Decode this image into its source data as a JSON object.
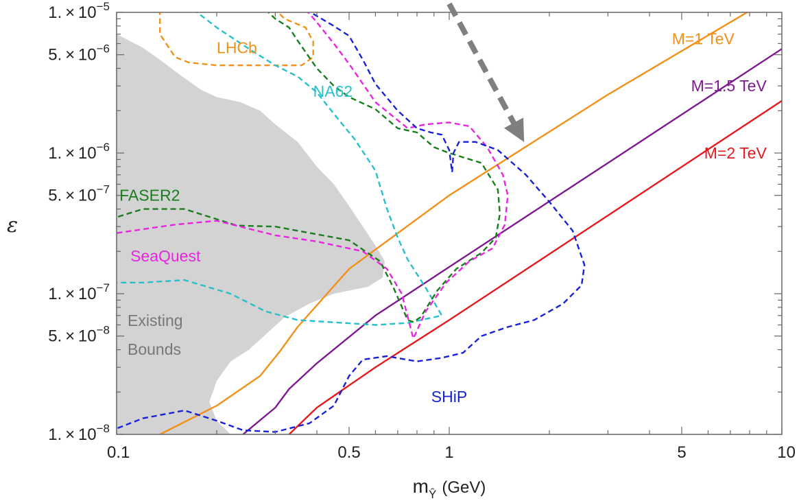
{
  "chart_data": {
    "type": "line",
    "xscale": "log",
    "yscale": "log",
    "xlim": [
      0.1,
      10
    ],
    "ylim": [
      1e-08,
      1e-05
    ],
    "xlabel": "m",
    "xlabel_sub": "Ŷ",
    "xlabel_unit": "(GeV)",
    "ylabel": "ε",
    "grid": false,
    "x_ticks": [
      {
        "value": 0.1,
        "label": "0.1"
      },
      {
        "value": 0.5,
        "label": "0.5"
      },
      {
        "value": 1,
        "label": "1"
      },
      {
        "value": 5,
        "label": "5"
      },
      {
        "value": 10,
        "label": "10"
      }
    ],
    "y_ticks": [
      {
        "value": 1e-08,
        "mant": "1. × 10",
        "exp": "−8"
      },
      {
        "value": 5e-08,
        "mant": "5. × 10",
        "exp": "−8"
      },
      {
        "value": 1e-07,
        "mant": "1. × 10",
        "exp": "−7"
      },
      {
        "value": 5e-07,
        "mant": "5. × 10",
        "exp": "−7"
      },
      {
        "value": 1e-06,
        "mant": "1. × 10",
        "exp": "−6"
      },
      {
        "value": 5e-06,
        "mant": "5. × 10",
        "exp": "−6"
      },
      {
        "value": 1e-05,
        "mant": "1. × 10",
        "exp": "−5"
      }
    ],
    "region": {
      "name": "Existing Bounds",
      "lines": [
        "Existing",
        "Bounds"
      ],
      "color": "#d3d3d3",
      "points": [
        [
          0.1,
          7e-06
        ],
        [
          0.12,
          5.6e-06
        ],
        [
          0.135,
          4.6e-06
        ],
        [
          0.155,
          3.6e-06
        ],
        [
          0.18,
          2.8e-06
        ],
        [
          0.2,
          2.5e-06
        ],
        [
          0.235,
          2.3e-06
        ],
        [
          0.27,
          2e-06
        ],
        [
          0.3,
          1.6e-06
        ],
        [
          0.35,
          1.2e-06
        ],
        [
          0.4,
          8e-07
        ],
        [
          0.45,
          6e-07
        ],
        [
          0.5,
          4.2e-07
        ],
        [
          0.55,
          3e-07
        ],
        [
          0.6,
          2.2e-07
        ],
        [
          0.64,
          1.7e-07
        ],
        [
          0.63,
          1.3e-07
        ],
        [
          0.57,
          1.12e-07
        ],
        [
          0.45,
          1e-07
        ],
        [
          0.38,
          8.5e-08
        ],
        [
          0.32,
          6.8e-08
        ],
        [
          0.28,
          5.1e-08
        ],
        [
          0.25,
          4e-08
        ],
        [
          0.22,
          3.3e-08
        ],
        [
          0.2,
          2.4e-08
        ],
        [
          0.19,
          1.7e-08
        ],
        [
          0.2,
          1.25e-08
        ],
        [
          0.22,
          1e-08
        ],
        [
          0.1,
          1e-08
        ]
      ]
    },
    "series": [
      {
        "name": "M=1 TeV",
        "color": "#f39019",
        "style": "solid",
        "points": [
          [
            0.135,
            1e-08
          ],
          [
            0.2,
            1.6e-08
          ],
          [
            0.27,
            2.6e-08
          ],
          [
            0.31,
            3.9e-08
          ],
          [
            0.35,
            5.8e-08
          ],
          [
            0.5,
            1.5e-07
          ],
          [
            1,
            5e-07
          ],
          [
            3,
            2.6e-06
          ],
          [
            10,
            1.4e-05
          ]
        ]
      },
      {
        "name": "M=1.5 TeV",
        "color": "#7d1a8f",
        "style": "solid",
        "points": [
          [
            0.24,
            1e-08
          ],
          [
            0.3,
            1.55e-08
          ],
          [
            0.33,
            2.1e-08
          ],
          [
            0.4,
            3.2e-08
          ],
          [
            0.6,
            7e-08
          ],
          [
            1,
            1.55e-07
          ],
          [
            3,
            8.5e-07
          ],
          [
            10,
            5.5e-06
          ]
        ]
      },
      {
        "name": "M=2 TeV",
        "color": "#e8191e",
        "style": "solid",
        "points": [
          [
            0.33,
            1e-08
          ],
          [
            0.4,
            1.55e-08
          ],
          [
            0.6,
            3e-08
          ],
          [
            1,
            6.5e-08
          ],
          [
            3,
            3.6e-07
          ],
          [
            10,
            2.35e-06
          ]
        ]
      },
      {
        "name": "LHCb",
        "color": "#f39019",
        "style": "dashed",
        "points": [
          [
            0.135,
            1.05e-05
          ],
          [
            0.135,
            7e-06
          ],
          [
            0.15,
            4.8e-06
          ],
          [
            0.165,
            4.4e-06
          ],
          [
            0.2,
            4.2e-06
          ],
          [
            0.3,
            4.2e-06
          ],
          [
            0.36,
            4.2e-06
          ],
          [
            0.39,
            4.8e-06
          ],
          [
            0.39,
            6.2e-06
          ],
          [
            0.37,
            7.8e-06
          ],
          [
            0.32,
            9e-06
          ],
          [
            0.3,
            1.05e-05
          ]
        ]
      },
      {
        "name": "NA62",
        "color": "#27c0c9",
        "style": "dashed",
        "points": [
          [
            0.17,
            1.05e-05
          ],
          [
            0.2,
            7.8e-06
          ],
          [
            0.25,
            5.5e-06
          ],
          [
            0.3,
            4.2e-06
          ],
          [
            0.35,
            3.5e-06
          ],
          [
            0.4,
            2.7e-06
          ],
          [
            0.45,
            1.9e-06
          ],
          [
            0.52,
            1.25e-06
          ],
          [
            0.6,
            7.5e-07
          ],
          [
            0.65,
            4e-07
          ],
          [
            0.7,
            2.5e-07
          ],
          [
            0.75,
            1.75e-07
          ],
          [
            0.85,
            1.1e-07
          ],
          [
            0.95,
            7e-08
          ],
          [
            0.75,
            6.2e-08
          ],
          [
            0.6,
            6e-08
          ],
          [
            0.35,
            6.5e-08
          ],
          [
            0.28,
            7.5e-08
          ],
          [
            0.22,
            1e-07
          ],
          [
            0.16,
            1.25e-07
          ],
          [
            0.12,
            1.2e-07
          ],
          [
            0.1,
            1.2e-07
          ]
        ]
      },
      {
        "name": "FASER2",
        "color": "#1a7d1d",
        "style": "dashed",
        "points": [
          [
            0.28,
            1.05e-05
          ],
          [
            0.3,
            9e-06
          ],
          [
            0.33,
            7.8e-06
          ],
          [
            0.35,
            6.3e-06
          ],
          [
            0.4,
            4e-06
          ],
          [
            0.45,
            3e-06
          ],
          [
            0.5,
            2.5e-06
          ],
          [
            0.6,
            2.05e-06
          ],
          [
            0.7,
            1.5e-06
          ],
          [
            0.8,
            1.4e-06
          ],
          [
            0.9,
            1.1e-06
          ],
          [
            1.0,
            1e-06
          ],
          [
            1.25,
            8.5e-07
          ],
          [
            1.4,
            5.5e-07
          ],
          [
            1.42,
            3.7e-07
          ],
          [
            1.38,
            2.5e-07
          ],
          [
            1.25,
            1.95e-07
          ],
          [
            1.05,
            1.5e-07
          ],
          [
            0.92,
            1.05e-07
          ],
          [
            0.82,
            6.8e-08
          ],
          [
            0.78,
            6.3e-08
          ],
          [
            0.75,
            6.5e-08
          ],
          [
            0.68,
            1.1e-07
          ],
          [
            0.62,
            1.7e-07
          ],
          [
            0.5,
            2.4e-07
          ],
          [
            0.3,
            3e-07
          ],
          [
            0.23,
            3.05e-07
          ],
          [
            0.16,
            4e-07
          ],
          [
            0.12,
            4e-07
          ],
          [
            0.1,
            3.5e-07
          ]
        ]
      },
      {
        "name": "SeaQuest",
        "color": "#e824e0",
        "style": "dashed",
        "points": [
          [
            0.37,
            1.05e-05
          ],
          [
            0.4,
            8.5e-06
          ],
          [
            0.45,
            6e-06
          ],
          [
            0.5,
            4.3e-06
          ],
          [
            0.6,
            2.3e-06
          ],
          [
            0.75,
            1.5e-06
          ],
          [
            0.85,
            1.6e-06
          ],
          [
            1.0,
            1.65e-06
          ],
          [
            1.15,
            1.55e-06
          ],
          [
            1.3,
            1.1e-06
          ],
          [
            1.45,
            7e-07
          ],
          [
            1.5,
            5e-07
          ],
          [
            1.47,
            3.1e-07
          ],
          [
            1.35,
            2.1e-07
          ],
          [
            1.15,
            1.7e-07
          ],
          [
            0.98,
            1.2e-07
          ],
          [
            0.85,
            7.5e-08
          ],
          [
            0.78,
            4.8e-08
          ],
          [
            0.72,
            1e-07
          ],
          [
            0.65,
            1.5e-07
          ],
          [
            0.55,
            2e-07
          ],
          [
            0.4,
            2.35e-07
          ],
          [
            0.3,
            2.6e-07
          ],
          [
            0.2,
            3.3e-07
          ],
          [
            0.15,
            3.1e-07
          ],
          [
            0.1,
            2.7e-07
          ]
        ]
      },
      {
        "name": "SHiP",
        "color": "#1721d8",
        "style": "dashed",
        "points": [
          [
            0.37,
            1.05e-05
          ],
          [
            0.45,
            8e-06
          ],
          [
            0.5,
            6.8e-06
          ],
          [
            0.55,
            4.6e-06
          ],
          [
            0.6,
            3.1e-06
          ],
          [
            0.7,
            2e-06
          ],
          [
            0.8,
            1.5e-06
          ],
          [
            0.88,
            1.4e-06
          ],
          [
            0.95,
            1.35e-06
          ],
          [
            1.0,
            1.05e-06
          ],
          [
            1.02,
            7.3e-07
          ],
          [
            1.03,
            1e-06
          ],
          [
            1.07,
            1.2e-06
          ],
          [
            1.2,
            1.2e-06
          ],
          [
            1.4,
            1.05e-06
          ],
          [
            1.7,
            7e-07
          ],
          [
            2.0,
            4.5e-07
          ],
          [
            2.35,
            2.8e-07
          ],
          [
            2.55,
            1.6e-07
          ],
          [
            2.5,
            1.15e-07
          ],
          [
            2.2,
            8.5e-08
          ],
          [
            1.8,
            6.5e-08
          ],
          [
            1.5,
            5.8e-08
          ],
          [
            1.25,
            5e-08
          ],
          [
            1.1,
            3.8e-08
          ],
          [
            0.95,
            3.5e-08
          ],
          [
            0.8,
            3.3e-08
          ],
          [
            0.65,
            3.6e-08
          ],
          [
            0.55,
            3.4e-08
          ],
          [
            0.5,
            2.6e-08
          ],
          [
            0.45,
            1.6e-08
          ],
          [
            0.38,
            1.2e-08
          ],
          [
            0.3,
            1.04e-08
          ],
          [
            0.24,
            1.07e-08
          ],
          [
            0.2,
            1.25e-08
          ],
          [
            0.16,
            1.48e-08
          ],
          [
            0.12,
            1.3e-08
          ],
          [
            0.1,
            1.1e-08
          ]
        ]
      }
    ],
    "labels": [
      {
        "series": "LHCb",
        "text": "LHCb",
        "color": "#f39019",
        "x": 0.23,
        "y": 5.6e-06,
        "anchor": "middle"
      },
      {
        "series": "NA62",
        "text": "NA62",
        "color": "#27c0c9",
        "x": 0.39,
        "y": 2.75e-06,
        "anchor": "start"
      },
      {
        "series": "FASER2",
        "text": "FASER2",
        "color": "#1a7d1d",
        "x": 0.102,
        "y": 5e-07,
        "anchor": "start"
      },
      {
        "series": "SeaQuest",
        "text": "SeaQuest",
        "color": "#e824e0",
        "x": 0.11,
        "y": 1.85e-07,
        "anchor": "start"
      },
      {
        "series": "SHiP",
        "text": "SHiP",
        "color": "#1721d8",
        "x": 1.0,
        "y": 1.85e-08,
        "anchor": "middle"
      },
      {
        "series": "M=1 TeV",
        "text": "M=1 TeV",
        "color": "#f39019",
        "x": 7.2,
        "y": 6.5e-06,
        "anchor": "end"
      },
      {
        "series": "M=1.5 TeV",
        "text": "M=1.5 TeV",
        "color": "#7d1a8f",
        "x": 9.0,
        "y": 3e-06,
        "anchor": "end"
      },
      {
        "series": "M=2 TeV",
        "text": "M=2 TeV",
        "color": "#e8191e",
        "x": 9.0,
        "y": 1e-06,
        "anchor": "end"
      }
    ],
    "arrow": {
      "color": "#7f7f7f",
      "from": [
        1.0,
        1.15e-05
      ],
      "to": [
        1.62,
        1.4e-06
      ]
    }
  }
}
